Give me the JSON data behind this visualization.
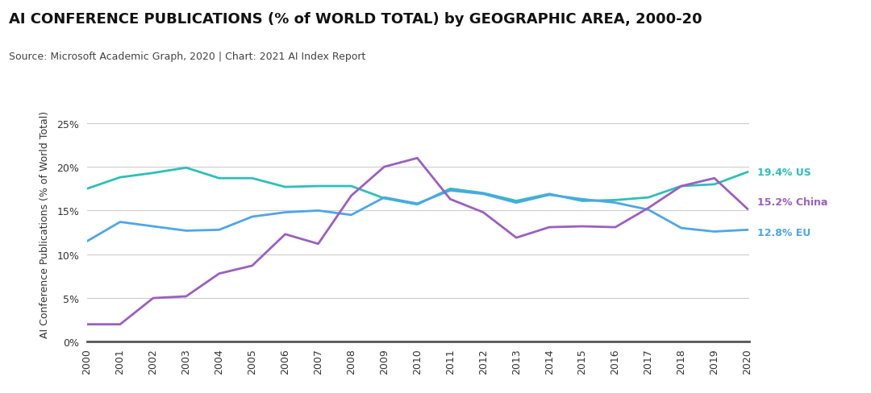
{
  "title": "AI CONFERENCE PUBLICATIONS (% of WORLD TOTAL) by GEOGRAPHIC AREA, 2000-20",
  "subtitle": "Source: Microsoft Academic Graph, 2020 | Chart: 2021 AI Index Report",
  "ylabel": "AI Conference Publications (% of World Total)",
  "years": [
    2000,
    2001,
    2002,
    2003,
    2004,
    2005,
    2006,
    2007,
    2008,
    2009,
    2010,
    2011,
    2012,
    2013,
    2014,
    2015,
    2016,
    2017,
    2018,
    2019,
    2020
  ],
  "US": [
    17.5,
    18.8,
    19.3,
    19.9,
    18.7,
    18.7,
    17.7,
    17.8,
    17.8,
    16.4,
    15.7,
    17.5,
    17.0,
    16.1,
    16.9,
    16.1,
    16.2,
    16.5,
    17.8,
    18.0,
    19.4
  ],
  "EU": [
    11.5,
    13.7,
    13.2,
    12.7,
    12.8,
    14.3,
    14.8,
    15.0,
    14.5,
    16.5,
    15.8,
    17.3,
    16.9,
    15.9,
    16.8,
    16.3,
    15.9,
    15.1,
    13.0,
    12.6,
    12.8
  ],
  "China": [
    2.0,
    2.0,
    5.0,
    5.2,
    7.8,
    8.7,
    12.3,
    11.2,
    16.7,
    20.0,
    21.0,
    16.3,
    14.8,
    11.9,
    13.1,
    13.2,
    13.1,
    15.3,
    17.8,
    18.7,
    15.2
  ],
  "US_color": "#2dbfb8",
  "EU_color": "#4da6e8",
  "China_color": "#9b5fc0",
  "background_color": "#ffffff",
  "ylim": [
    0,
    27
  ],
  "yticks": [
    0,
    5,
    10,
    15,
    20,
    25
  ],
  "ytick_labels": [
    "0%",
    "5%",
    "10%",
    "15%",
    "20%",
    "25%"
  ],
  "label_US": "19.4% US",
  "label_EU": "12.8% EU",
  "label_China": "15.2% China",
  "title_fontsize": 13,
  "subtitle_fontsize": 9,
  "ylabel_fontsize": 9,
  "tick_fontsize": 9,
  "label_fontsize": 9,
  "linewidth": 2.0
}
